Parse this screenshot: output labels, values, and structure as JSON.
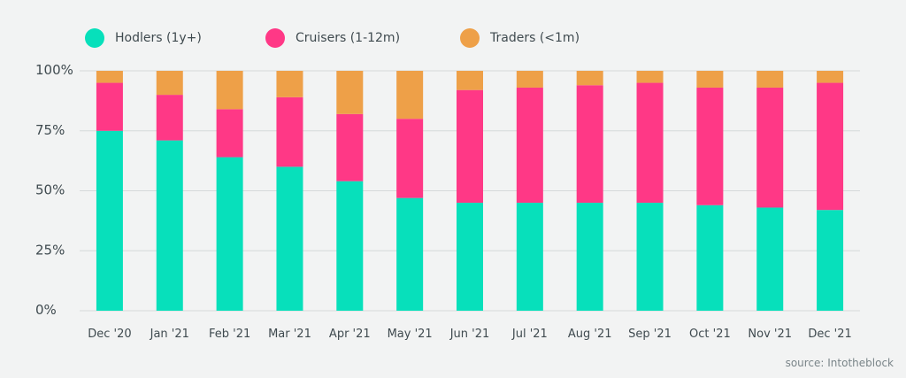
{
  "chart_data": {
    "type": "bar",
    "stacked": true,
    "categories": [
      "Dec '20",
      "Jan '21",
      "Feb '21",
      "Mar '21",
      "Apr '21",
      "May '21",
      "Jun '21",
      "Jul '21",
      "Aug '21",
      "Sep '21",
      "Oct '21",
      "Nov '21",
      "Dec '21"
    ],
    "series": [
      {
        "name": "Hodlers (1y+)",
        "color": "#07e0bb",
        "values": [
          75,
          71,
          64,
          60,
          54,
          47,
          45,
          45,
          45,
          45,
          44,
          43,
          42
        ]
      },
      {
        "name": "Cruisers (1-12m)",
        "color": "#ff3886",
        "values": [
          20,
          19,
          20,
          29,
          28,
          33,
          47,
          48,
          49,
          50,
          49,
          50,
          53
        ]
      },
      {
        "name": "Traders (<1m)",
        "color": "#eea048",
        "values": [
          5,
          10,
          16,
          11,
          18,
          20,
          8,
          7,
          6,
          5,
          7,
          7,
          5
        ]
      }
    ],
    "yticks": [
      "0%",
      "25%",
      "50%",
      "75%",
      "100%"
    ],
    "ylim": [
      0,
      100
    ],
    "grid": true,
    "legend_position": "top-left"
  },
  "source": "source: Intotheblock"
}
